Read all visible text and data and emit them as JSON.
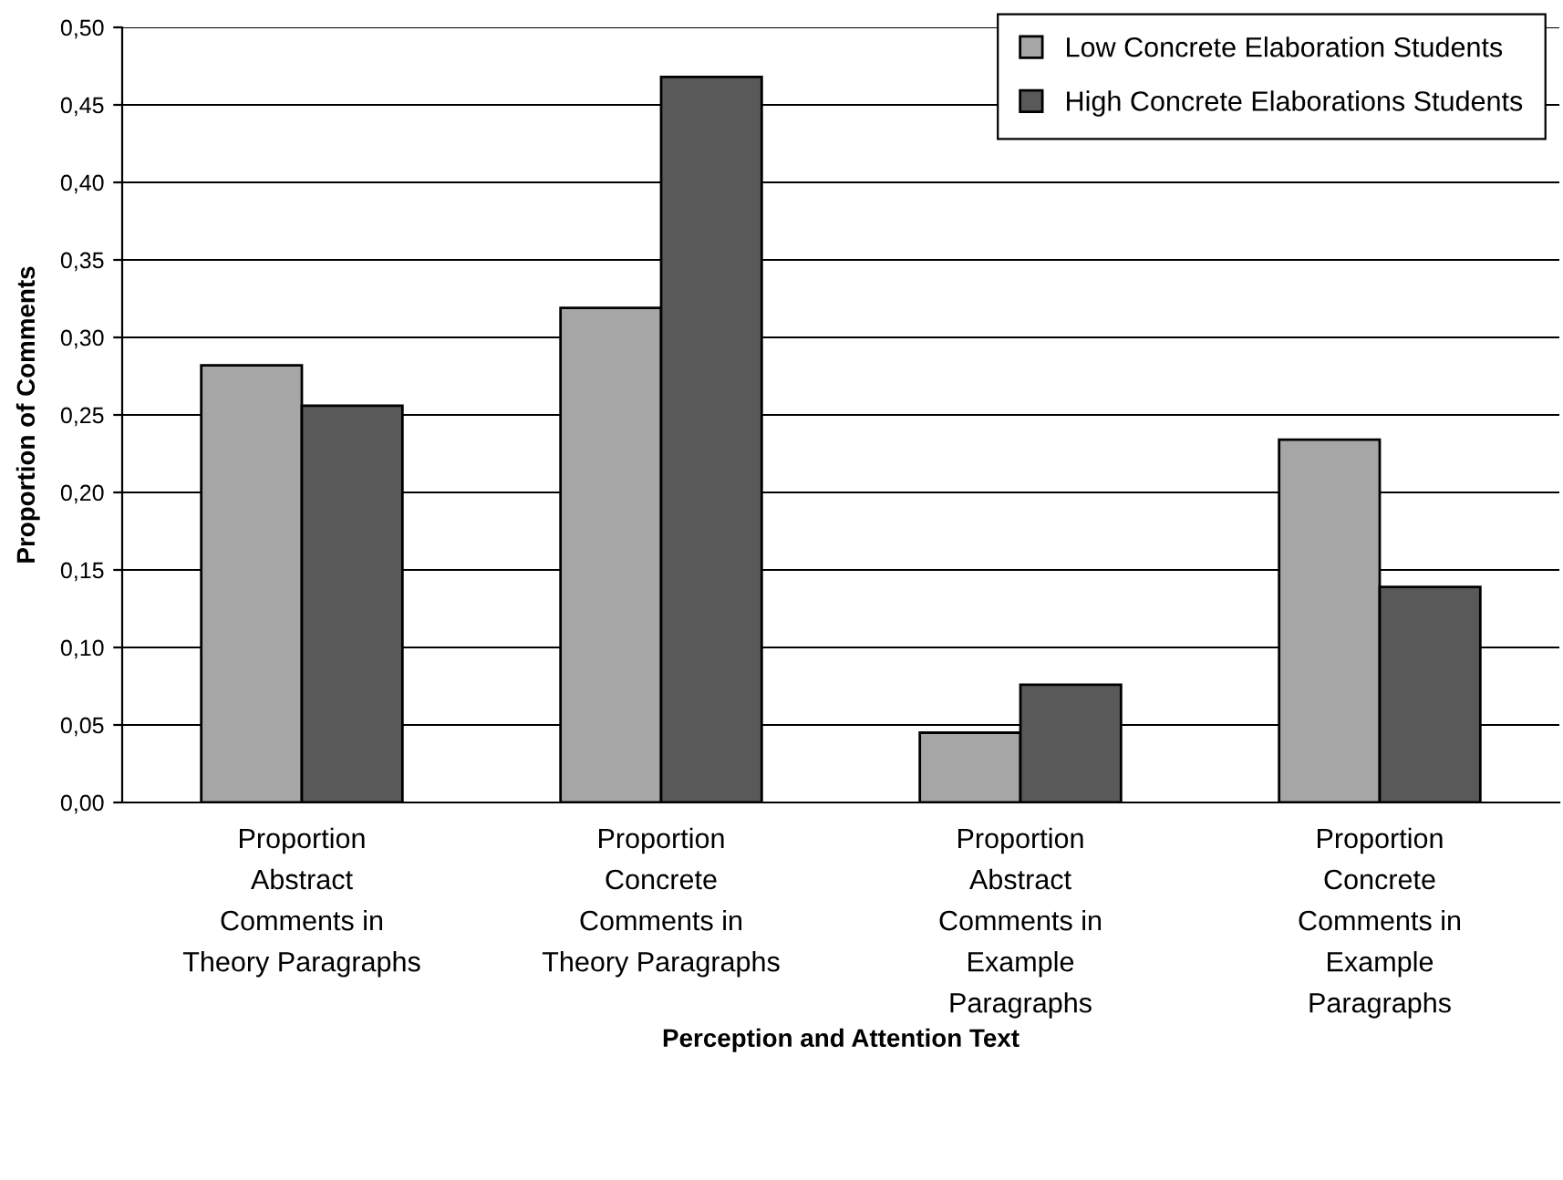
{
  "chart_data": {
    "type": "bar",
    "xlabel": "Perception and Attention Text",
    "ylabel": "Proportion of Comments",
    "categories": [
      "Proportion\nAbstract\nComments in\nTheory Paragraphs",
      "Proportion\nConcrete\nComments in\nTheory Paragraphs",
      "Proportion\nAbstract\nComments in\nExample\nParagraphs",
      "Proportion\nConcrete\nComments in\nExample\nParagraphs"
    ],
    "series": [
      {
        "name": "Low Concrete Elaboration Students",
        "color": "#a6a6a6",
        "values": [
          0.282,
          0.319,
          0.045,
          0.234
        ]
      },
      {
        "name": "High Concrete Elaborations Students",
        "color": "#595959",
        "values": [
          0.256,
          0.468,
          0.076,
          0.139
        ]
      }
    ],
    "ylim": [
      0,
      0.5
    ],
    "yticks": [
      {
        "value": 0,
        "label": "0,00"
      },
      {
        "value": 0.05,
        "label": "0,05"
      },
      {
        "value": 0.1,
        "label": "0,10"
      },
      {
        "value": 0.15,
        "label": "0,15"
      },
      {
        "value": 0.2,
        "label": "0,20"
      },
      {
        "value": 0.25,
        "label": "0,25"
      },
      {
        "value": 0.3,
        "label": "0,30"
      },
      {
        "value": 0.35,
        "label": "0,35"
      },
      {
        "value": 0.4,
        "label": "0,40"
      },
      {
        "value": 0.45,
        "label": "0,45"
      },
      {
        "value": 0.5,
        "label": "0,50"
      }
    ],
    "grid": "y",
    "legend": "top right"
  }
}
